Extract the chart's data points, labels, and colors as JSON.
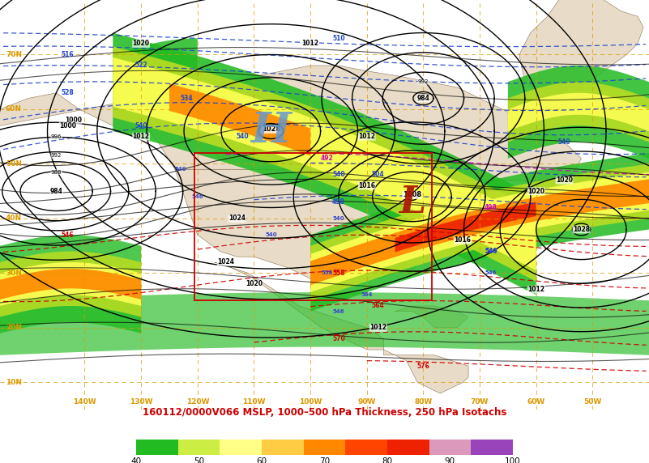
{
  "title": "160112/0000V066 MSLP, 1000–500 hPa Thickness, 250 hPa Isotachs",
  "title_color": "#cc0000",
  "background_color": "#ffffff",
  "ocean_color": "#ffffff",
  "land_color": "#e8dcc8",
  "H_color": "#6699cc",
  "L_color": "#aa1100",
  "grid_color": "#dd9900",
  "colorbar_colors": [
    "#22bb22",
    "#ccee44",
    "#ffff88",
    "#ffcc44",
    "#ff8800",
    "#ff4400",
    "#ee2200",
    "#dd99bb",
    "#9944bb"
  ],
  "colorbar_ticks": [
    40,
    50,
    60,
    70,
    80,
    90,
    100
  ],
  "lat_values": [
    10,
    20,
    30,
    40,
    50,
    60,
    70
  ],
  "lon_values": [
    -140,
    -130,
    -120,
    -110,
    -100,
    -90,
    -80,
    -70,
    -60,
    -50
  ],
  "lon_min": -155,
  "lon_max": -40,
  "lat_min": 5,
  "lat_max": 80
}
